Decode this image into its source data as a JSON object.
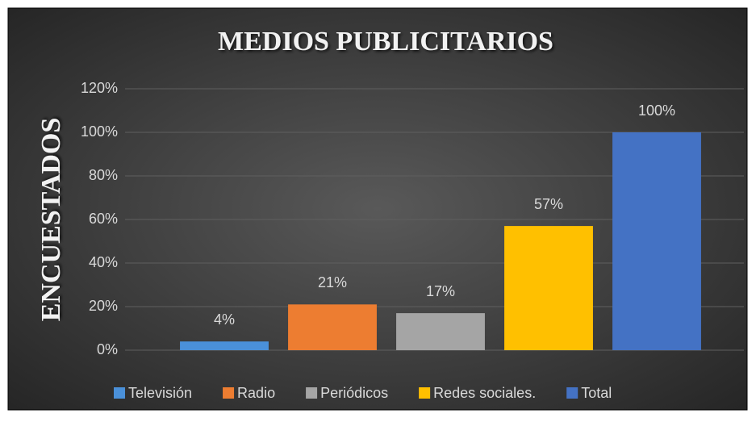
{
  "chart_data": {
    "type": "bar",
    "title": "MEDIOS PUBLICITARIOS",
    "y_label": "ENCUESTADOS",
    "categories": [
      "Televisión",
      "Radio",
      "Periódicos",
      "Redes sociales.",
      "Total"
    ],
    "values": [
      4,
      21,
      17,
      57,
      100
    ],
    "value_labels": [
      "4%",
      "21%",
      "17%",
      "57%",
      "100%"
    ],
    "colors": [
      "#4a90d9",
      "#ed7d31",
      "#a5a5a5",
      "#ffc000",
      "#4472c4"
    ],
    "ylim": [
      0,
      120
    ],
    "yticks": [
      {
        "value": 0,
        "label": "0%"
      },
      {
        "value": 20,
        "label": "20%"
      },
      {
        "value": 40,
        "label": "40%"
      },
      {
        "value": 60,
        "label": "60%"
      },
      {
        "value": 80,
        "label": "80%"
      },
      {
        "value": 100,
        "label": "100%"
      },
      {
        "value": 120,
        "label": "120%"
      }
    ],
    "grid": true,
    "legend": "bottom"
  }
}
